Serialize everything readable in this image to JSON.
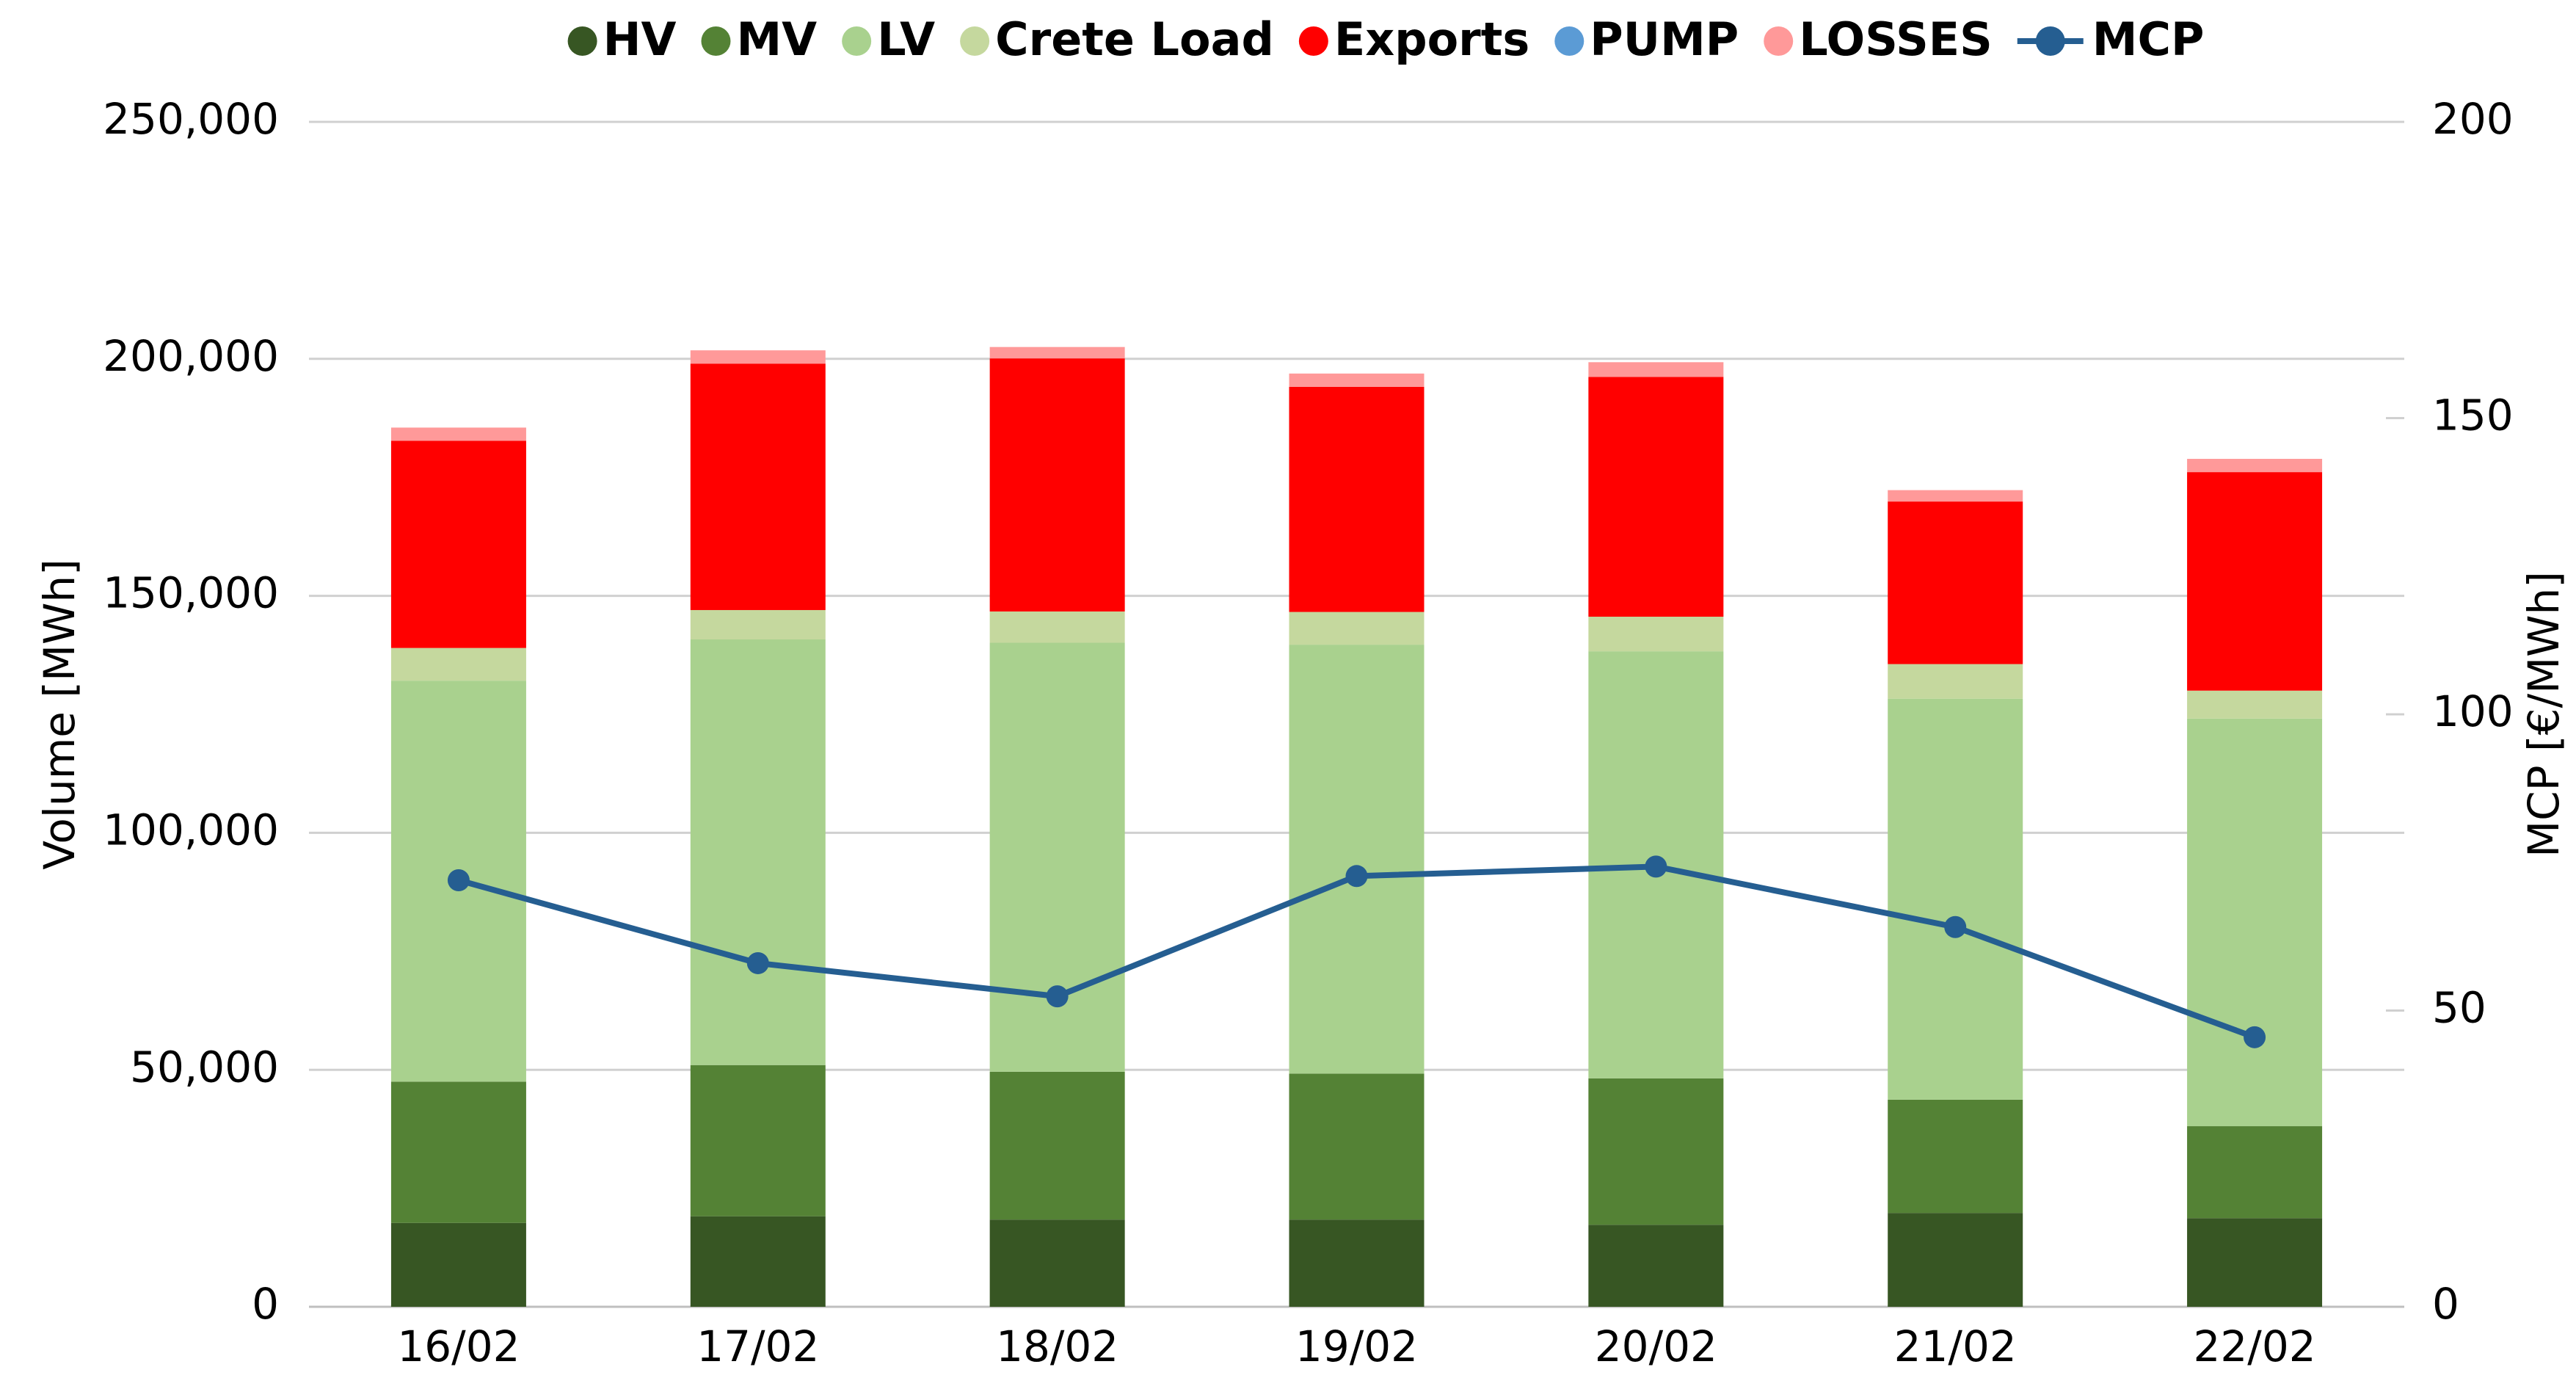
{
  "chart_data": {
    "type": "stacked-bar-line",
    "categories": [
      "16/02",
      "17/02",
      "18/02",
      "19/02",
      "20/02",
      "21/02",
      "22/02"
    ],
    "series": [
      {
        "name": "HV",
        "color": "#375623",
        "values": [
          17700,
          19100,
          18400,
          18400,
          17300,
          19800,
          18700
        ]
      },
      {
        "name": "MV",
        "color": "#548235",
        "values": [
          29800,
          31900,
          31200,
          30800,
          30900,
          23900,
          19400
        ]
      },
      {
        "name": "LV",
        "color": "#a9d18e",
        "values": [
          84600,
          89800,
          90500,
          90500,
          90100,
          84600,
          86000
        ]
      },
      {
        "name": "Crete Load",
        "color": "#c5d89e",
        "values": [
          6900,
          6200,
          6600,
          6900,
          7300,
          7300,
          5900
        ]
      },
      {
        "name": "Exports",
        "color": "#ff0000",
        "values": [
          43700,
          52000,
          53400,
          47500,
          50600,
          34300,
          46100
        ]
      },
      {
        "name": "PUMP",
        "color": "#5b9bd5",
        "values": [
          0,
          0,
          0,
          0,
          0,
          0,
          0
        ]
      },
      {
        "name": "LOSSES",
        "color": "#ff9999",
        "values": [
          2800,
          2800,
          2400,
          2800,
          3100,
          2400,
          2800
        ]
      },
      {
        "name": "MCP",
        "color": "#255e91",
        "axis": "y2",
        "line": true,
        "values": [
          72,
          58,
          52.4,
          72.7,
          74.3,
          64.1,
          45.5
        ]
      }
    ],
    "ylabel": "Volume [MWh]",
    "y2label": "MCP [€/MWh]",
    "ylim": [
      0,
      250000
    ],
    "yticks": [
      0,
      {
        "value": 50000,
        "label": "50,000"
      },
      {
        "value": 100000,
        "label": "100,000"
      },
      {
        "value": 150000,
        "label": "150,000"
      },
      {
        "value": 200000,
        "label": "200,000"
      },
      {
        "value": 250000,
        "label": "250,000"
      }
    ],
    "y2lim": [
      0,
      200
    ],
    "y2ticks": [
      0,
      50,
      100,
      150,
      200
    ],
    "grid": true,
    "legend": "top"
  }
}
